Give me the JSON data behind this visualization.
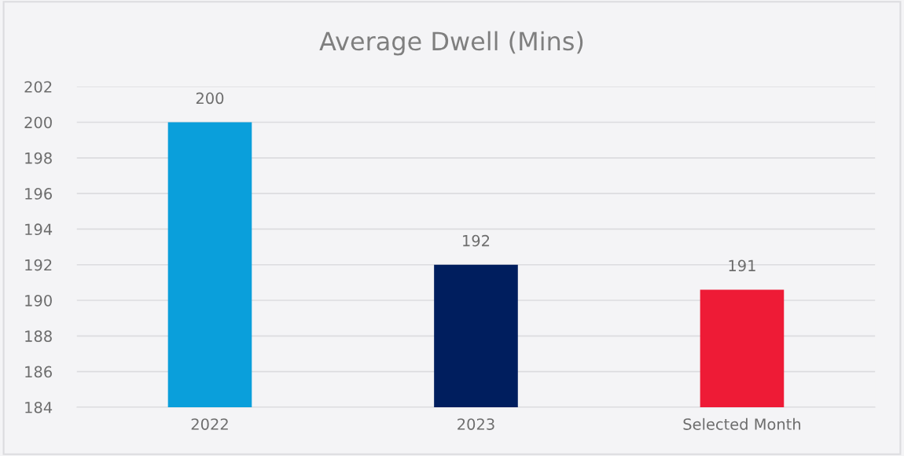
{
  "chart_data": {
    "type": "bar",
    "title": "Average Dwell (Mins)",
    "categories": [
      "2022",
      "2023",
      "Selected Month"
    ],
    "values": [
      200,
      192,
      190.6
    ],
    "colors": [
      "#0a9fdb",
      "#001e5e",
      "#ee1b36"
    ],
    "value_labels": [
      "200",
      "192",
      "191"
    ],
    "ylim": [
      184,
      202
    ],
    "yticks": [
      184,
      186,
      188,
      190,
      192,
      194,
      196,
      198,
      200,
      202
    ],
    "grid": "y",
    "legend": false
  }
}
